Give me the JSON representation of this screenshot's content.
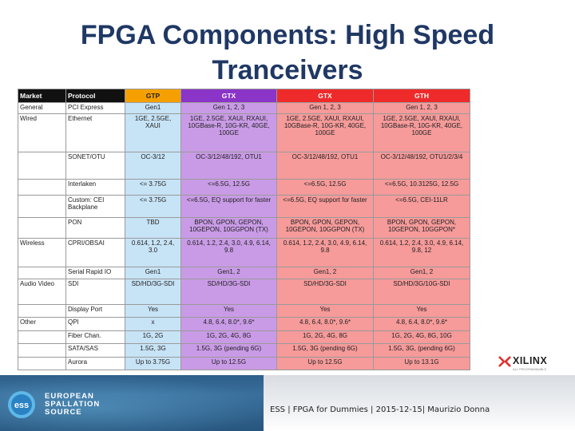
{
  "slide": {
    "title_line1": "FPGA Components: High Speed",
    "title_line2": "Tranceivers"
  },
  "table": {
    "headers": {
      "market": "Market",
      "protocol": "Protocol",
      "gtp": "GTP",
      "gtx7": "GTX",
      "gtx": "GTX",
      "gth": "GTH"
    },
    "rows": [
      {
        "market": "General",
        "protocol": "PCI Express",
        "gtp": "Gen1",
        "gtx7": "Gen 1, 2, 3",
        "gtx": "Gen 1, 2, 3",
        "gth": "Gen 1, 2, 3"
      },
      {
        "market": "Wired",
        "protocol": "Ethernet",
        "gtp": "1GE, 2.5GE, XAUI",
        "gtx7": "1GE, 2.5GE, XAUI, RXAUI, 10GBase-R, 10G-KR, 40GE, 100GE",
        "gtx": "1GE, 2.5GE, XAUI, RXAUI, 10GBase-R, 10G-KR, 40GE, 100GE",
        "gth": "1GE, 2.5GE, XAUI, RXAUI, 10GBase-R, 10G-KR, 40GE, 100GE"
      },
      {
        "market": "",
        "protocol": "SONET/OTU",
        "gtp": "OC-3/12",
        "gtx7": "OC-3/12/48/192, OTU1",
        "gtx": "OC-3/12/48/192, OTU1",
        "gth": "OC-3/12/48/192, OTU1/2/3/4"
      },
      {
        "market": "",
        "protocol": "Interlaken",
        "gtp": "<= 3.75G",
        "gtx7": "<=6.5G, 12.5G",
        "gtx": "<=6.5G, 12.5G",
        "gth": "<=6.5G, 10.3125G, 12.5G"
      },
      {
        "market": "",
        "protocol": "Custom: CEI Backplane",
        "gtp": "<= 3.75G",
        "gtx7": "<=6.5G, EQ support for faster",
        "gtx": "<=6.5G, EQ support for faster",
        "gth": "<=6.5G, CEI-11LR"
      },
      {
        "market": "",
        "protocol": "PON",
        "gtp": "TBD",
        "gtx7": "BPON, GPON, GEPON, 10GEPON, 10GGPON (TX)",
        "gtx": "BPON, GPON, GEPON, 10GEPON, 10GGPON (TX)",
        "gth": "BPON, GPON, GEPON, 10GEPON, 10GGPON*"
      },
      {
        "market": "Wireless",
        "protocol": "CPRI/OBSAI",
        "gtp": "0.614, 1.2, 2.4, 3.0",
        "gtx7": "0.614, 1.2, 2.4, 3.0, 4.9, 6.14, 9.8",
        "gtx": "0.614, 1.2, 2.4, 3.0, 4.9, 6.14, 9.8",
        "gth": "0.614, 1.2, 2.4, 3.0, 4.9, 6.14, 9.8, 12"
      },
      {
        "market": "",
        "protocol": "Serial Rapid IO",
        "gtp": "Gen1",
        "gtx7": "Gen1, 2",
        "gtx": "Gen1, 2",
        "gth": "Gen1, 2"
      },
      {
        "market": "Audio Video",
        "protocol": "SDI",
        "gtp": "SD/HD/3G-SDI",
        "gtx7": "SD/HD/3G-SDI",
        "gtx": "SD/HD/3G-SDI",
        "gth": "SD/HD/3G/10G-SDI"
      },
      {
        "market": "",
        "protocol": "Display Port",
        "gtp": "Yes",
        "gtx7": "Yes",
        "gtx": "Yes",
        "gth": "Yes"
      },
      {
        "market": "Other",
        "protocol": "QPI",
        "gtp": "x",
        "gtx7": "4.8, 6.4, 8.0*, 9.6*",
        "gtx": "4.8, 6.4, 8.0*, 9.6*",
        "gth": "4.8, 6.4, 8.0*, 9.6*"
      },
      {
        "market": "",
        "protocol": "Fiber Chan.",
        "gtp": "1G, 2G",
        "gtx7": "1G, 2G, 4G, 8G",
        "gtx": "1G, 2G, 4G, 8G",
        "gth": "1G, 2G, 4G, 8G, 10G"
      },
      {
        "market": "",
        "protocol": "SATA/SAS",
        "gtp": "1.5G, 3G",
        "gtx7": "1.5G, 3G (pending 6G)",
        "gtx": "1.5G, 3G (pending 6G)",
        "gth": "1.5G, 3G, (pending 6G)"
      },
      {
        "market": "",
        "protocol": "Aurora",
        "gtp": "Up to 3.75G",
        "gtx7": "Up to 12.5G",
        "gtx": "Up to 12.5G",
        "gth": "Up to 13.1G"
      }
    ]
  },
  "xilinx_logo": {
    "name": "XILINX",
    "tagline": "ALL PROGRAMMABLE"
  },
  "footer": {
    "org_line1": "EUROPEAN",
    "org_line2": "SPALLATION",
    "org_line3": "SOURCE",
    "logo_text": "ess",
    "text": "ESS | FPGA for Dummies | 2015-12-15| Maurizio Donna"
  },
  "colors": {
    "title": "#1f3864",
    "gtp_header": "#f5a000",
    "gtx7_header": "#8a34c8",
    "gtx_header": "#ee2a2a",
    "gtp_cell": "#c7e3f6",
    "gtx7_cell": "#c99be6",
    "gtx_cell": "#f69a9a",
    "footer_blue": "#2e5f8a"
  }
}
